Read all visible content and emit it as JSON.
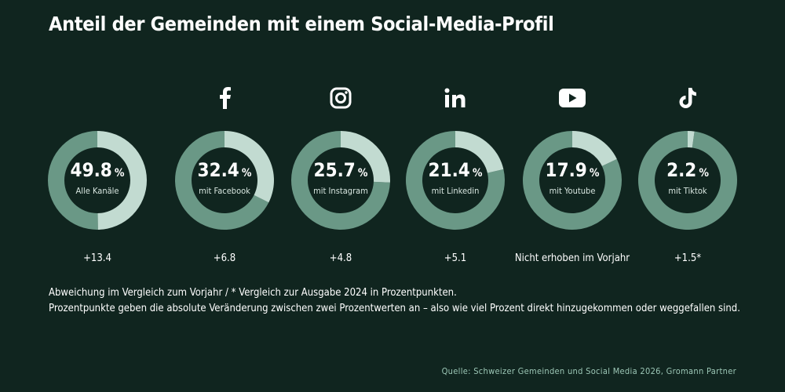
{
  "title": "Anteil der Gemeinden mit einem Social-Media-Profil",
  "colors": {
    "background": "#10251f",
    "remainder": "#6a9886",
    "share": "#c2dbd1"
  },
  "chart_data": {
    "type": "pie",
    "variant": "donut",
    "title": "Anteil der Gemeinden mit einem Social-Media-Profil",
    "unit": "%",
    "items": [
      {
        "label": "Alle Kanäle",
        "value": 49.8,
        "value_text": "49.8",
        "icon": "none",
        "delta": "+13.4"
      },
      {
        "label": "mit Facebook",
        "value": 32.4,
        "value_text": "32.4",
        "icon": "facebook-icon",
        "delta": "+6.8"
      },
      {
        "label": "mit Instagram",
        "value": 25.7,
        "value_text": "25.7",
        "icon": "instagram-icon",
        "delta": "+4.8"
      },
      {
        "label": "mit Linkedin",
        "value": 21.4,
        "value_text": "21.4",
        "icon": "linkedin-icon",
        "delta": "+5.1"
      },
      {
        "label": "mit Youtube",
        "value": 17.9,
        "value_text": "17.9",
        "icon": "youtube-icon",
        "delta": "Nicht erhoben im Vorjahr"
      },
      {
        "label": "mit Tiktok",
        "value": 2.2,
        "value_text": "2.2",
        "icon": "tiktok-icon",
        "delta": "+1.5*"
      }
    ]
  },
  "notes": [
    "Abweichung im Vergleich zum Vorjahr / * Vergleich zur Ausgabe 2024 in Prozentpunkten.",
    "Prozentpunkte geben die absolute Veränderung zwischen zwei Prozentwerten an – also wie viel Prozent direkt hinzugekommen oder weggefallen sind."
  ],
  "source": "Quelle: Schweizer Gemeinden und Social Media 2026, Gromann Partner"
}
